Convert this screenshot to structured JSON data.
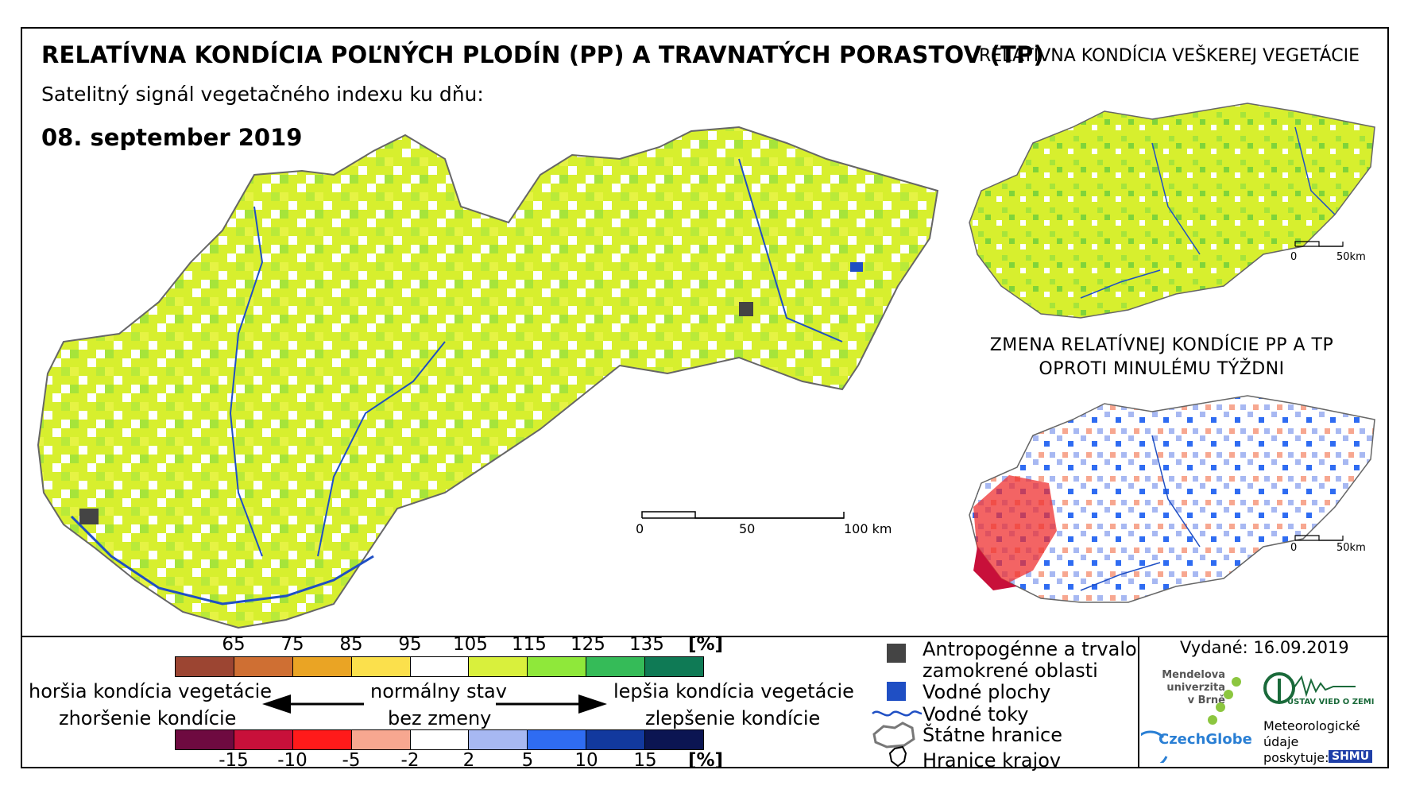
{
  "header": {
    "title": "RELATÍVNA KONDÍCIA POĽNÝCH PLODÍN (PP) A TRAVNATÝCH PORASTOV (TP)",
    "subtitle": "Satelitný signál vegetačného indexu ku dňu:",
    "date": "08. september 2019"
  },
  "side_maps": {
    "top_title": "RELATÍVNA KONDÍCIA VEŠKEREJ VEGETÁCIE",
    "bottom_title_line1": "ZMENA RELATÍVNEJ KONDÍCIE PP A TP",
    "bottom_title_line2": "OPROTI MINULÉMU TÝŽDNI",
    "scale_zero": "0",
    "scale_end": "50km"
  },
  "main_scale": {
    "zero": "0",
    "mid": "50",
    "end": "100 km"
  },
  "legend": {
    "condition_ticks": [
      "65",
      "75",
      "85",
      "95",
      "105",
      "115",
      "125",
      "135"
    ],
    "condition_unit": "[%]",
    "condition_colors": [
      "#9c4532",
      "#cf6f33",
      "#eaa424",
      "#fbe04c",
      "#ffffff",
      "#d9f03c",
      "#8fe83a",
      "#35bb58",
      "#0f7a55"
    ],
    "change_ticks": [
      "-15",
      "-10",
      "-5",
      "-2",
      "2",
      "5",
      "10",
      "15"
    ],
    "change_unit": "[%]",
    "change_colors": [
      "#6e0a40",
      "#c8103a",
      "#ff1a1a",
      "#f7a790",
      "#ffffff",
      "#a7b8f2",
      "#2f6cf2",
      "#12399e",
      "#0b1552"
    ],
    "worse": "horšia kondícia vegetácie",
    "worse_change": "zhoršenie kondície",
    "normal": "normálny stav",
    "no_change": "bez zmeny",
    "better": "lepšia kondícia vegetácie",
    "better_change": "zlepšenie kondície"
  },
  "map_legend": {
    "anthropogenic_line1": "Antropogénne a trvalo",
    "anthropogenic_line2": "zamokrené oblasti",
    "water_bodies": "Vodné plochy",
    "rivers": "Vodné toky",
    "state_border": "Štátne hranice",
    "region_border": "Hranice krajov"
  },
  "footer": {
    "issued_label": "Vydané:",
    "issued_date": "16.09.2019",
    "mendel_line1": "Mendelova",
    "mendel_line2": "univerzita",
    "mendel_line3": "v Brně",
    "czechglobe": "CzechGlobe",
    "uvz": "ÚSTAV VIED O ZEMI",
    "met_line1": "Meteorologické",
    "met_line2": "údaje",
    "met_line3": "poskytuje:",
    "shmu": "SHMÚ"
  }
}
